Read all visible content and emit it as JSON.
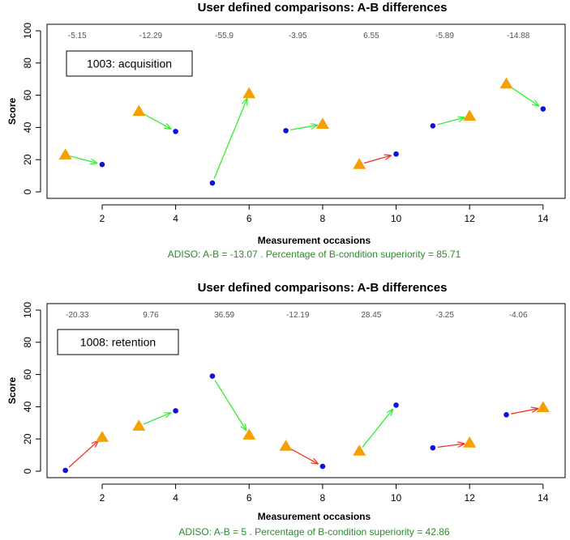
{
  "colors": {
    "improve_arrow": "#33ee33",
    "decline_arrow": "#ee3322",
    "a_marker": "#f5a000",
    "b_marker": "#1010dd",
    "caption": "#2e8b2e"
  },
  "chart_data": [
    {
      "type": "scatter",
      "title": "User defined comparisons: A-B differences",
      "xlabel": "Measurement occasions",
      "ylabel": "Score",
      "xlim": [
        0.5,
        14.6
      ],
      "ylim": [
        0,
        100
      ],
      "xticks": [
        "2",
        "4",
        "6",
        "8",
        "10",
        "12",
        "14"
      ],
      "yticks": [
        "0",
        "20",
        "40",
        "60",
        "80",
        "100"
      ],
      "note": "1003: acquisition",
      "caption": "ADISO: A-B =  -13.07 . Percentage of B-condition superiority =  85.71",
      "pairs": [
        {
          "a_x": 1,
          "a_y": 23,
          "b_x": 2,
          "b_y": 17,
          "diff": "-5.15"
        },
        {
          "a_x": 3,
          "a_y": 50,
          "b_x": 4,
          "b_y": 37.5,
          "diff": "-12.29"
        },
        {
          "a_x": 6,
          "a_y": 61,
          "b_x": 5,
          "b_y": 5.5,
          "diff": "-55.9"
        },
        {
          "a_x": 8,
          "a_y": 42,
          "b_x": 7,
          "b_y": 38,
          "diff": "-3.95"
        },
        {
          "a_x": 9,
          "a_y": 17,
          "b_x": 10,
          "b_y": 23.5,
          "diff": "6.55"
        },
        {
          "a_x": 12,
          "a_y": 47,
          "b_x": 11,
          "b_y": 41,
          "diff": "-5.89"
        },
        {
          "a_x": 13,
          "a_y": 67,
          "b_x": 14,
          "b_y": 51.5,
          "diff": "-14.88"
        }
      ]
    },
    {
      "type": "scatter",
      "title": "User defined comparisons: A-B differences",
      "xlabel": "Measurement occasions",
      "ylabel": "Score",
      "xlim": [
        0.5,
        14.6
      ],
      "ylim": [
        0,
        100
      ],
      "xticks": [
        "2",
        "4",
        "6",
        "8",
        "10",
        "12",
        "14"
      ],
      "yticks": [
        "0",
        "20",
        "40",
        "60",
        "80",
        "100"
      ],
      "note": "1008: retention",
      "caption": "ADISO: A-B =  5 . Percentage of B-condition superiority =  42.86",
      "pairs": [
        {
          "a_x": 2,
          "a_y": 21,
          "b_x": 1,
          "b_y": 0.5,
          "diff": "-20.33"
        },
        {
          "a_x": 3,
          "a_y": 28,
          "b_x": 4,
          "b_y": 37.5,
          "diff": "9.76"
        },
        {
          "a_x": 6,
          "a_y": 22.5,
          "b_x": 5,
          "b_y": 59,
          "diff": "36.59"
        },
        {
          "a_x": 7,
          "a_y": 15.5,
          "b_x": 8,
          "b_y": 3,
          "diff": "-12.19"
        },
        {
          "a_x": 9,
          "a_y": 12.5,
          "b_x": 10,
          "b_y": 41,
          "diff": "28.45"
        },
        {
          "a_x": 12,
          "a_y": 17.5,
          "b_x": 11,
          "b_y": 14.5,
          "diff": "-3.25"
        },
        {
          "a_x": 14,
          "a_y": 39.5,
          "b_x": 13,
          "b_y": 35,
          "diff": "-4.06"
        }
      ]
    }
  ]
}
